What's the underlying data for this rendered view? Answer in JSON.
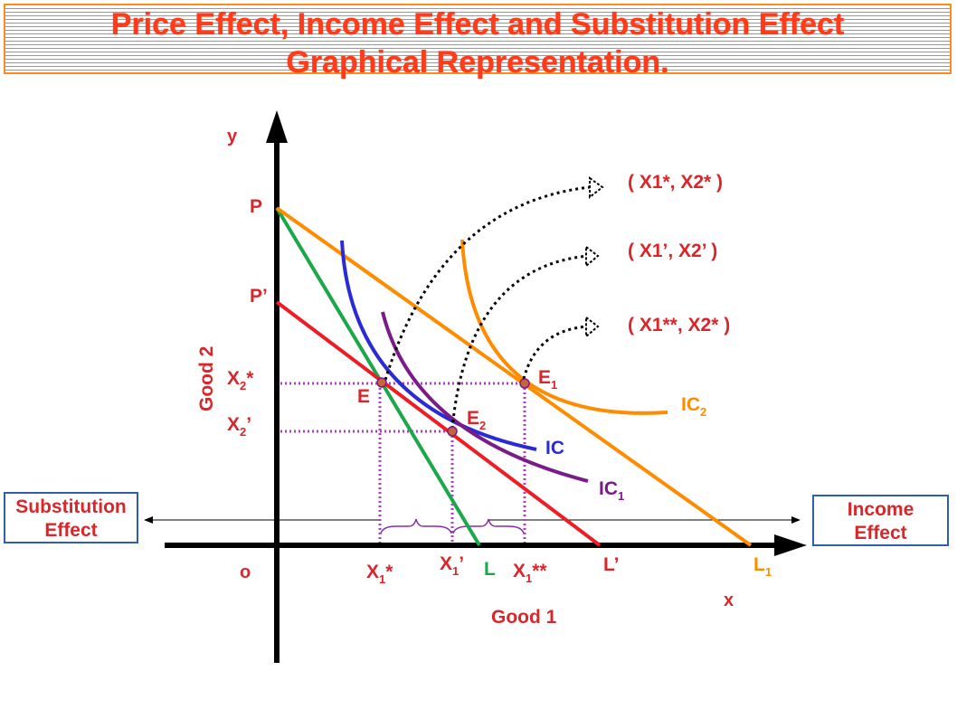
{
  "title": {
    "line1": "Price Effect, Income Effect and Substitution Effect",
    "line2": "Graphical Representation."
  },
  "boxes": {
    "substitution": [
      "Substitution",
      "Effect"
    ],
    "income": [
      "Income",
      "Effect"
    ]
  },
  "axes": {
    "y_letter": "y",
    "x_letter": "x",
    "origin": "o",
    "y_title": "Good 2",
    "x_title": "Good 1"
  },
  "labels": {
    "P": "P",
    "P_prime": "P’",
    "L": "L",
    "L_prime": "L’",
    "L1": {
      "base": "L",
      "sub": "1"
    },
    "E": "E",
    "E1": {
      "base": "E",
      "sub": "1"
    },
    "E2": {
      "base": "E",
      "sub": "2"
    },
    "IC": "IC",
    "IC1": {
      "base": "IC",
      "sub": "1"
    },
    "IC2": {
      "base": "IC",
      "sub": "2"
    },
    "X2_star": {
      "base": "X",
      "sub": "2",
      "tail": "*"
    },
    "X2_prime": {
      "base": "X",
      "sub": "2",
      "tail": "’"
    },
    "X1_star": {
      "base": "X",
      "sub": "1",
      "tail": "*"
    },
    "X1_prime": {
      "base": "X",
      "sub": "1",
      "tail": "’"
    },
    "X1_dstar": {
      "base": "X",
      "sub": "1",
      "tail": "**"
    }
  },
  "coordinates": {
    "c1": "( X1*, X2* )",
    "c2": "( X1’, X2’ )",
    "c3": "( X1**, X2* )"
  },
  "colors": {
    "title": "#ff3b1a",
    "label_red": "#d9262b",
    "orange": "#ff8c00",
    "red": "#ee1c24",
    "green": "#1aa84a",
    "blue": "#2b2bd4",
    "purple": "#7b1a8a",
    "guide": "#b03cc8",
    "box_border": "#2f5fa8"
  }
}
